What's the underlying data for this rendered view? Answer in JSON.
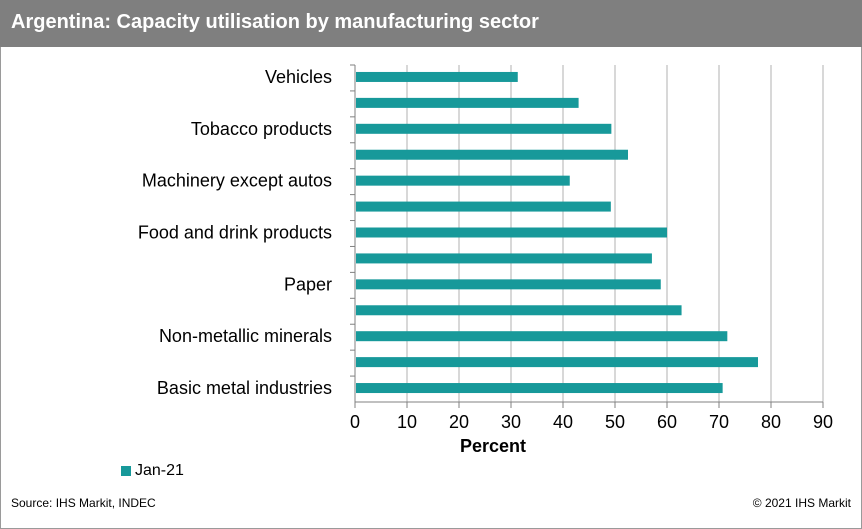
{
  "title": "Argentina: Capacity utilisation by manufacturing sector",
  "source": "Source: IHS Markit, INDEC",
  "copyright": "© 2021 IHS Markit",
  "colors": {
    "bar": "#17999a",
    "title_bg": "#7f7f7f",
    "grid": "#b0b0b0",
    "axis": "#808080"
  },
  "chart_data": {
    "type": "bar",
    "orientation": "horizontal",
    "title": "Argentina: Capacity utilisation by manufacturing sector",
    "xlabel": "Percent",
    "ylabel": "",
    "xlim": [
      0,
      90
    ],
    "xticks": [
      0,
      10,
      20,
      30,
      40,
      50,
      60,
      70,
      80,
      90
    ],
    "grid": "vertical",
    "legend": "bottom-left",
    "categories": [
      "Vehicles",
      "",
      "Tobacco products",
      "",
      "Machinery except autos",
      "",
      "Food and drink products",
      "",
      "Paper",
      "",
      "Non-metallic minerals",
      "",
      "Basic metal industries"
    ],
    "series": [
      {
        "name": "Jan-21",
        "values": [
          31.3,
          43.0,
          49.3,
          52.5,
          41.3,
          49.2,
          60.0,
          57.1,
          58.8,
          62.8,
          71.6,
          77.5,
          70.7
        ]
      }
    ]
  }
}
